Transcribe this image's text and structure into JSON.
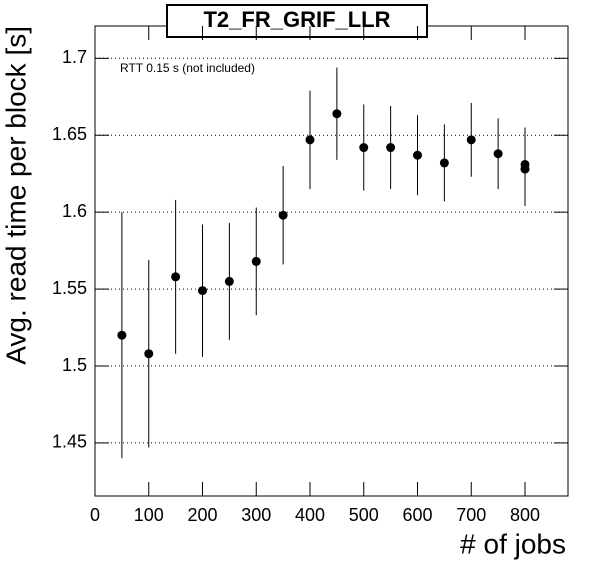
{
  "chart_data": {
    "type": "errorbar",
    "title": "T2_FR_GRIF_LLR",
    "annotation": "RTT 0.15 s (not included)",
    "x_label": "# of jobs",
    "y_label": "Avg. read time per block [s]",
    "x": [
      50,
      100,
      150,
      200,
      250,
      300,
      350,
      400,
      450,
      500,
      550,
      600,
      650,
      700,
      750,
      800,
      800
    ],
    "values": [
      1.52,
      1.508,
      1.558,
      1.549,
      1.555,
      1.568,
      1.598,
      1.647,
      1.664,
      1.642,
      1.642,
      1.637,
      1.632,
      1.647,
      1.638,
      1.631,
      1.628
    ],
    "errors": [
      0.08,
      0.061,
      0.05,
      0.043,
      0.038,
      0.035,
      0.032,
      0.032,
      0.03,
      0.028,
      0.027,
      0.026,
      0.025,
      0.024,
      0.023,
      0.024,
      0.024
    ],
    "color": "#000000",
    "xlim": [
      0,
      880
    ],
    "ylim": [
      1.4155,
      1.721
    ],
    "xticks": [
      0,
      100,
      200,
      300,
      400,
      500,
      600,
      700,
      800
    ],
    "yticks": [
      1.45,
      1.5,
      1.55,
      1.6,
      1.65,
      1.7
    ],
    "grid": "y"
  }
}
